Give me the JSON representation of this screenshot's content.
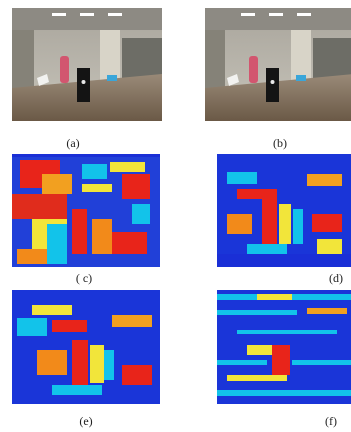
{
  "figure": {
    "panels": [
      {
        "label": "(a)",
        "kind": "photo"
      },
      {
        "label": "(b)",
        "kind": "photo"
      },
      {
        "label": "( c)",
        "kind": "heatmap"
      },
      {
        "label": "(d)",
        "kind": "heatmap"
      },
      {
        "label": "(e)",
        "kind": "heatmap"
      },
      {
        "label": "(f)",
        "kind": "heatmap"
      }
    ]
  },
  "colors": {
    "wall": "#bdbbb2",
    "ceiling": "#cfcdc6",
    "desk": "#7d6a55",
    "heat_low": "#1a2fd6",
    "heat_mid": "#12c3ea",
    "heat_warm": "#f2e53a",
    "heat_high": "#e8241a"
  }
}
